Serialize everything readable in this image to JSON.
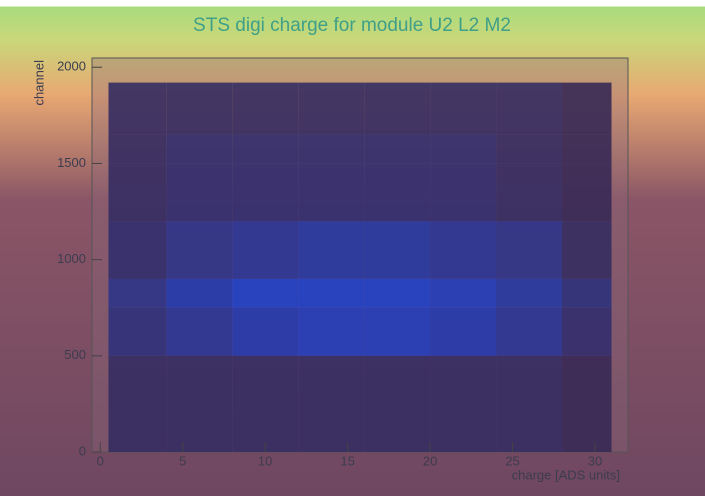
{
  "chart_data": {
    "type": "histogram2d",
    "title": "STS digi charge for module U2 L2 M2",
    "x_label": "charge [ADS units]",
    "y_label": "channel",
    "xlim": [
      -0.5,
      32
    ],
    "ylim": [
      0,
      2048
    ],
    "xticks": [
      0,
      5,
      10,
      15,
      20,
      25,
      30
    ],
    "yticks": [
      0,
      500,
      1000,
      1500,
      2000
    ],
    "xbins": [
      0.5,
      4,
      8,
      12,
      16,
      20,
      24,
      28,
      31
    ],
    "ybins": [
      0,
      500,
      750,
      900,
      1200,
      1500,
      1650,
      1920
    ],
    "z": [
      [
        2,
        2,
        2,
        2,
        2,
        2,
        2,
        1
      ],
      [
        4,
        6,
        8,
        9,
        9,
        8,
        6,
        3
      ],
      [
        5,
        8,
        10,
        10,
        10,
        9,
        7,
        4
      ],
      [
        3,
        5,
        6,
        7,
        7,
        6,
        5,
        2
      ],
      [
        2,
        3,
        3,
        3,
        3,
        3,
        2,
        1
      ],
      [
        2,
        3,
        3,
        3,
        3,
        3,
        2,
        1
      ],
      [
        2,
        2,
        2,
        2,
        2,
        2,
        2,
        1
      ]
    ],
    "colormap": [
      "#3a2748",
      "#1f3fc8"
    ]
  }
}
